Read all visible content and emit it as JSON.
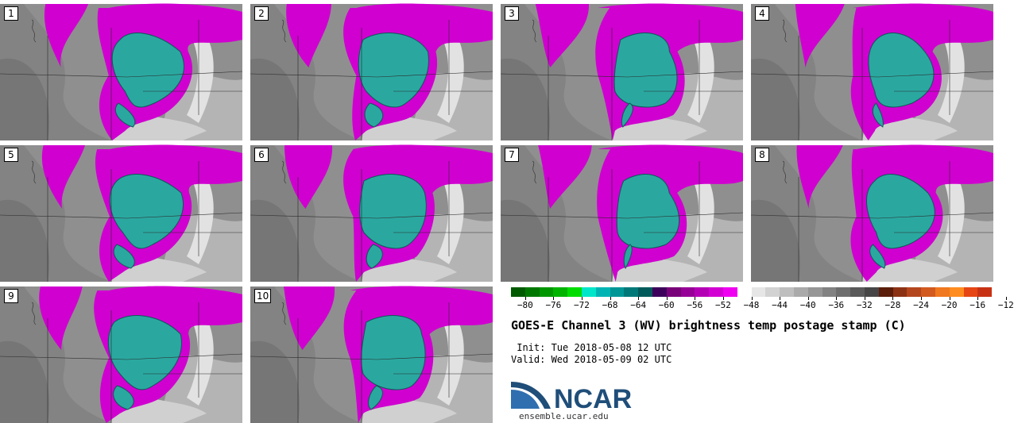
{
  "panels": [
    {
      "label": "1"
    },
    {
      "label": "2"
    },
    {
      "label": "3"
    },
    {
      "label": "4"
    },
    {
      "label": "5"
    },
    {
      "label": "6"
    },
    {
      "label": "7"
    },
    {
      "label": "8"
    },
    {
      "label": "9"
    },
    {
      "label": "10"
    }
  ],
  "colorbar": {
    "colors": [
      "#005a00",
      "#007800",
      "#009600",
      "#00b400",
      "#00dc00",
      "#00e6c8",
      "#00b4b4",
      "#009696",
      "#007878",
      "#005a5a",
      "#3c005a",
      "#780078",
      "#960096",
      "#b400b4",
      "#d200d2",
      "#f000f0",
      "#ffffff",
      "#e6e6e6",
      "#d2d2d2",
      "#bebebe",
      "#aaaaaa",
      "#969696",
      "#828282",
      "#6e6e6e",
      "#5a5a5a",
      "#464646",
      "#5a1e0a",
      "#8c3214",
      "#b4461e",
      "#d25a1e",
      "#f0781e",
      "#ff8c1e",
      "#e64614",
      "#c83214"
    ],
    "tick_labels": [
      "−80",
      "−76",
      "−72",
      "−68",
      "−64",
      "−60",
      "−56",
      "−52",
      "−48",
      "−44",
      "−40",
      "−36",
      "−32",
      "−28",
      "−24",
      "−20",
      "−16",
      "−12"
    ]
  },
  "title": "GOES-E Channel 3 (WV) brightness temp postage stamp (C)",
  "init": " Init: Tue 2018-05-08 12 UTC",
  "valid": "Valid: Wed 2018-05-09 02 UTC",
  "logo": {
    "text": "NCAR",
    "url": "ensemble.ucar.edu",
    "color": "#1f4e79"
  }
}
